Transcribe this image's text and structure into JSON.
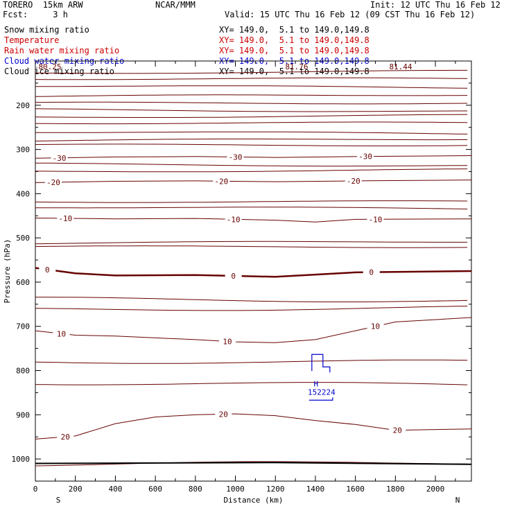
{
  "header": {
    "model": "TORERO  15km ARW",
    "center": "NCAR/MMM",
    "init": "Init: 12 UTC Thu 16 Feb 12",
    "fcst": "Fcst:     3 h",
    "valid": "Valid: 15 UTC Thu 16 Feb 12 (09 CST Thu 16 Feb 12)"
  },
  "legend": [
    {
      "label": "Snow mixing ratio",
      "xy": "XY= 149.0,  5.1 to 149.0,149.8",
      "color": "#000000"
    },
    {
      "label": "Temperature",
      "xy": "XY= 149.0,  5.1 to 149.0,149.8",
      "color": "#cc0000"
    },
    {
      "label": "Rain water mixing ratio",
      "xy": "XY= 149.0,  5.1 to 149.0,149.8",
      "color": "#cc0000"
    },
    {
      "label": "Cloud water mixing ratio",
      "xy": "XY= 149.0,  5.1 to 149.0,149.8",
      "color": "#0000cc"
    },
    {
      "label": "Cloud ice mixing ratio",
      "xy": "XY= 149.0,  5.1 to 149.0,149.8",
      "color": "#000000"
    }
  ],
  "chart_data": {
    "type": "contour-cross-section",
    "xlabel": "Distance (km)",
    "ylabel": "Pressure (hPa)",
    "xlim": [
      0,
      2180
    ],
    "ylim": [
      1050,
      100
    ],
    "xticks": [
      0,
      200,
      400,
      600,
      800,
      1000,
      1200,
      1400,
      1600,
      1800,
      2000
    ],
    "yticks": [
      200,
      300,
      400,
      500,
      600,
      700,
      800,
      900,
      1000
    ],
    "left_end_label": "S",
    "right_end_label": "N",
    "temperature_contours": [
      {
        "value": -30,
        "label": "-30",
        "points": [
          [
            0,
            320
          ],
          [
            400,
            317
          ],
          [
            800,
            316
          ],
          [
            1200,
            318
          ],
          [
            1600,
            316
          ],
          [
            2180,
            314
          ]
        ],
        "label_x": [
          120,
          1000,
          1650
        ]
      },
      {
        "value": -20,
        "label": "-20",
        "points": [
          [
            0,
            375
          ],
          [
            400,
            372
          ],
          [
            800,
            371
          ],
          [
            1200,
            373
          ],
          [
            1600,
            371
          ],
          [
            2180,
            369
          ]
        ],
        "label_x": [
          90,
          930,
          1590
        ]
      },
      {
        "value": -10,
        "label": "-10",
        "points": [
          [
            0,
            455
          ],
          [
            400,
            457
          ],
          [
            800,
            456
          ],
          [
            1200,
            460
          ],
          [
            1400,
            464
          ],
          [
            1600,
            458
          ],
          [
            2180,
            457
          ]
        ],
        "label_x": [
          150,
          990,
          1700
        ]
      },
      {
        "value": 0,
        "label": "0",
        "points": [
          [
            0,
            568
          ],
          [
            200,
            580
          ],
          [
            400,
            585
          ],
          [
            800,
            584
          ],
          [
            1000,
            586
          ],
          [
            1200,
            588
          ],
          [
            1400,
            583
          ],
          [
            1600,
            578
          ],
          [
            2180,
            575
          ]
        ],
        "label_x": [
          60,
          990,
          1680
        ],
        "bold": true
      },
      {
        "value": 10,
        "label": "10",
        "points": [
          [
            0,
            710
          ],
          [
            200,
            720
          ],
          [
            400,
            722
          ],
          [
            800,
            730
          ],
          [
            1000,
            735
          ],
          [
            1200,
            737
          ],
          [
            1400,
            730
          ],
          [
            1600,
            710
          ],
          [
            1800,
            690
          ],
          [
            2180,
            680
          ]
        ],
        "label_x": [
          130,
          960,
          1700
        ]
      },
      {
        "value": 20,
        "label": "20",
        "points": [
          [
            0,
            955
          ],
          [
            200,
            948
          ],
          [
            400,
            920
          ],
          [
            600,
            905
          ],
          [
            800,
            900
          ],
          [
            1000,
            898
          ],
          [
            1200,
            902
          ],
          [
            1400,
            913
          ],
          [
            1600,
            922
          ],
          [
            1800,
            935
          ],
          [
            2180,
            932
          ]
        ],
        "label_x": [
          150,
          940,
          1810
        ]
      }
    ],
    "other_isolines_hpa": [
      125,
      140,
      158,
      178,
      195,
      212,
      225,
      240,
      262,
      278,
      290,
      335,
      348,
      418,
      432,
      510,
      520,
      640,
      660,
      780,
      830,
      1010
    ],
    "cloud_water_maximum": {
      "label": "H",
      "value": "152224",
      "x_km": 1410,
      "p_hpa": 820
    },
    "annotations": [
      "80.25",
      "81.76",
      "81.44"
    ]
  }
}
